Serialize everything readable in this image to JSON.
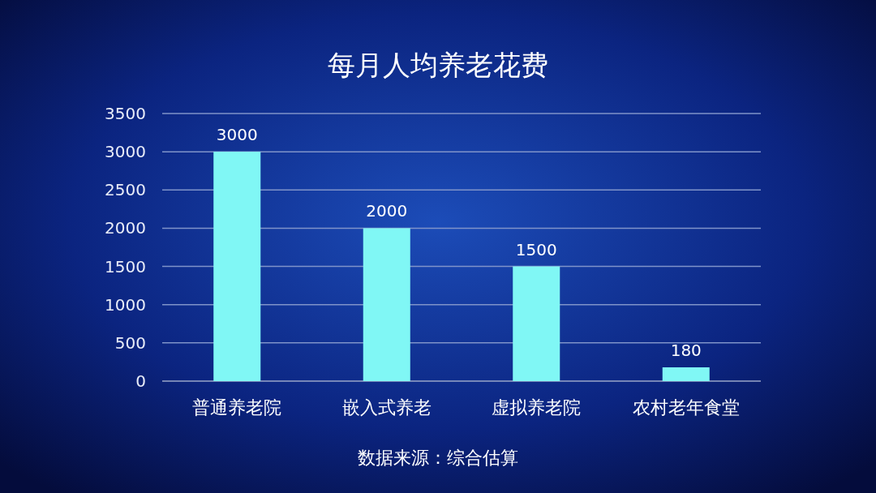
{
  "chart_data": {
    "type": "bar",
    "title": "每月人均养老花费",
    "categories": [
      "普通养老院",
      "嵌入式养老",
      "虚拟养老院",
      "农村老年食堂"
    ],
    "values": [
      3000,
      2000,
      1500,
      180
    ],
    "color": "#80f7f5",
    "ylim": [
      0,
      3500
    ],
    "yticks": [
      0,
      500,
      1000,
      1500,
      2000,
      2500,
      3000,
      3500
    ],
    "grid": "y",
    "data_labels": true,
    "annotations": [
      "数据来源：综合估算"
    ]
  }
}
